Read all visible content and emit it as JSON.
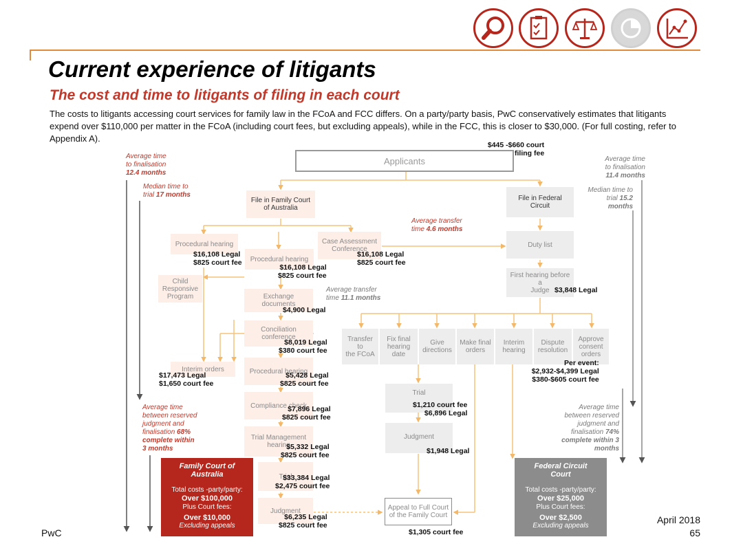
{
  "header": {
    "title": "Current experience of litigants",
    "subtitle": "The cost and time to litigants of filing in each court",
    "intro": "The costs to litigants accessing court services for family law in the FCoA and FCC differs. On a party/party basis, PwC conservatively estimates that litigants expend over $110,000 per matter in the FCoA (including court fees, but excluding appeals), while in the FCC, this is closer to $30,000. (For full costing, refer to Appendix A)."
  },
  "nav_icons": [
    "magnifier-icon",
    "clipboard-checklist-icon",
    "scales-icon",
    "pie-chart-icon",
    "line-chart-icon"
  ],
  "colors": {
    "accent": "#b5271d",
    "fcoa_box": "#b5271d",
    "fcc_box": "#8c8c8c",
    "pale_box": "#fdeee8",
    "arrow": "#f5c27a"
  },
  "flow": {
    "applicants": "Applicants",
    "applicants_fee": [
      "$445 -$660 court",
      "filing fee"
    ],
    "fcoa": {
      "file": [
        "File in Family Court",
        "of Australia"
      ],
      "procedural_hearing_1": "Procedural hearing",
      "procedural_hearing_1_cost": [
        "$16,108 Legal",
        "$825 court fee"
      ],
      "child_program": [
        "Child",
        "Responsive",
        "Program"
      ],
      "procedural_hearing_2": "Procedural hearing",
      "procedural_hearing_2_cost": [
        "$16,108 Legal",
        "$825 court fee"
      ],
      "case_assessment": [
        "Case Assessment",
        "Conference"
      ],
      "case_assessment_cost": [
        "$16,108 Legal",
        "$825 court fee"
      ],
      "exchange_documents": "Exchange documents",
      "exchange_documents_cost": "$4,900 Legal",
      "conciliation": [
        "Conciliation",
        "conference"
      ],
      "conciliation_cost": [
        "$8,019 Legal",
        "$380 court fee"
      ],
      "interim_orders": "Interim orders",
      "interim_orders_cost": [
        "$17,473 Legal",
        "$1,650 court fee"
      ],
      "procedural_hearing_3": "Procedural hearing",
      "procedural_hearing_3_cost": [
        "$5,428 Legal",
        "$825 court fee"
      ],
      "compliance_check": "Compliance check",
      "compliance_check_cost": [
        "$7,896 Legal",
        "$825 court fee"
      ],
      "trial_management": [
        "Trial Management",
        "hearing"
      ],
      "trial_management_cost": [
        "$5,332 Legal",
        "$825 court fee"
      ],
      "trial": "Trial",
      "trial_cost": [
        "$33,384 Legal",
        "$2,475 court fee"
      ],
      "judgment": "Judgment",
      "judgment_cost": [
        "$6,235 Legal",
        "$825 court fee"
      ]
    },
    "fcc": {
      "file": "File in Federal Circuit",
      "duty_list": "Duty list",
      "first_hearing": [
        "First hearing before a",
        "Judge"
      ],
      "first_hearing_cost": "$3,848 Legal",
      "options": [
        [
          "Transfer to",
          "the FCoA"
        ],
        [
          "Fix final",
          "hearing date"
        ],
        [
          "Give",
          "directions"
        ],
        [
          "Make final",
          "orders"
        ],
        [
          "Interim",
          "hearing"
        ],
        [
          "Dispute",
          "resolution"
        ],
        [
          "Approve",
          "consent",
          "orders"
        ]
      ],
      "per_event": [
        "Per event:",
        "$2,932-$4,399 Legal",
        "$380-$605 court fee"
      ],
      "trial": "Trial",
      "trial_cost": [
        "$1,210 court fee",
        "$6,896 Legal"
      ],
      "judgment": "Judgment",
      "judgment_cost": "$1,948 Legal"
    },
    "appeal": [
      "Appeal to Full Court",
      "of the Family Court"
    ],
    "appeal_cost": "$1,305 court fee"
  },
  "timing_notes": {
    "fcoa_finalisation": [
      "Average time",
      "to finalisation",
      "12.4 months"
    ],
    "fcoa_median_trial": [
      "Median time to",
      "trial",
      "17 months"
    ],
    "transfer_1": [
      "Average transfer",
      "time",
      "4.6 months"
    ],
    "transfer_2": [
      "Average transfer",
      "time",
      "11.1 months"
    ],
    "fcoa_reserved": [
      "Average time",
      "between reserved",
      "judgment and",
      "finalisation",
      "68%",
      "complete within",
      "3 months"
    ],
    "fcc_finalisation": [
      "Average time",
      "to finalisation",
      "11.4 months"
    ],
    "fcc_median_trial": [
      "Median time to",
      "trial",
      "15.2",
      "months"
    ],
    "fcc_reserved": [
      "Average time",
      "between reserved",
      "judgment and",
      "finalisation",
      "74%",
      "complete within 3",
      "months"
    ]
  },
  "summaries": {
    "fcoa": {
      "heading": [
        "Family Court of",
        "Australia"
      ],
      "total_label": "Total costs -party/party:",
      "total": "Over $100,000",
      "fees_label": "Plus Court fees:",
      "fees": "Over $10,000",
      "excl": "Excluding appeals"
    },
    "fcc": {
      "heading": [
        "Federal Circuit",
        "Court"
      ],
      "total_label": "Total costs -party/party:",
      "total": "Over $25,000",
      "fees_label": "Plus Court fees:",
      "fees": "Over $2,500",
      "excl": "Excluding appeals"
    }
  },
  "footer": {
    "left": "PwC",
    "date": "April 2018",
    "page": "65"
  }
}
